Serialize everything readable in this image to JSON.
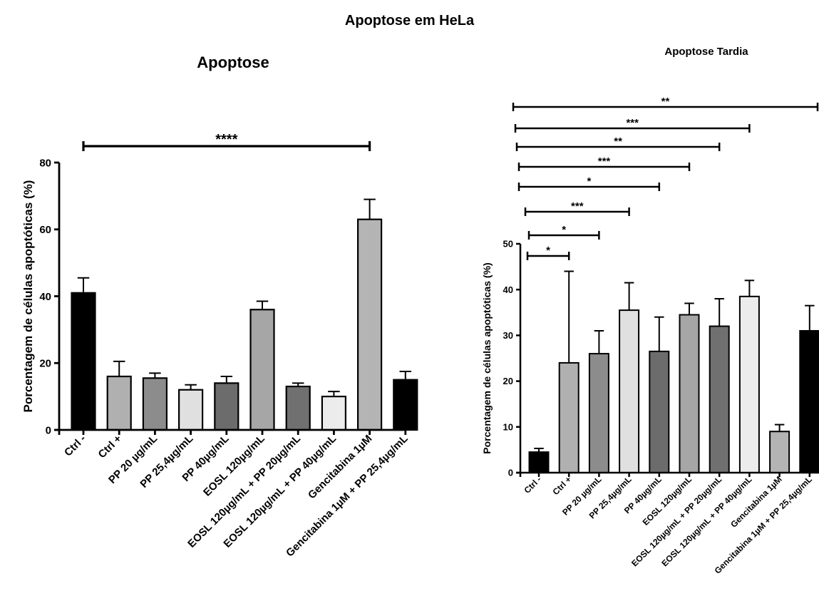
{
  "page": {
    "title": "Apoptose em HeLa"
  },
  "chart_data": [
    {
      "type": "bar",
      "title": "Apoptose",
      "ylabel": "Porcentagem de células apoptóticas (%)",
      "xlabel": "",
      "ylim": [
        0,
        80
      ],
      "yticks": [
        0,
        20,
        40,
        60,
        80
      ],
      "grid": false,
      "categories": [
        "Ctrl -",
        "Ctrl +",
        "PP 20 µg/mL",
        "PP 25,4µg/mL",
        "PP 40µg/mL",
        "EOSL 120µg/mL",
        "EOSL 120µg/mL + PP 20µg/mL",
        "EOSL 120µg/mL + PP 40µg/mL",
        "Gencitabina 1µM",
        "Gencitabina 1µM + PP 25,4µg/mL"
      ],
      "values": [
        41,
        16,
        15.5,
        12,
        14,
        36,
        13,
        10,
        63,
        15
      ],
      "errors": [
        4.5,
        4.5,
        1.5,
        1.5,
        2,
        2.5,
        1,
        1.5,
        6,
        2.5
      ],
      "colors": [
        "#000000",
        "#b0b0b0",
        "#8c8c8c",
        "#e0e0e0",
        "#6c6c6c",
        "#a6a6a6",
        "#707070",
        "#ececec",
        "#b4b4b4",
        "#000000"
      ],
      "significance": [
        {
          "from": 0,
          "to": 8,
          "label": "****"
        }
      ]
    },
    {
      "type": "bar",
      "title": "Apoptose Tardia",
      "ylabel": "Porcentagem de células apoptóticas (%)",
      "xlabel": "",
      "ylim": [
        0,
        50
      ],
      "yticks": [
        0,
        10,
        20,
        30,
        40,
        50
      ],
      "grid": false,
      "categories": [
        "Ctrl -",
        "Ctrl +",
        "PP 20 µg/mL",
        "PP 25,4µg/mL",
        "PP 40µg/mL",
        "EOSL 120µg/mL",
        "EOSL 120µg/mL + PP 20µg/mL",
        "EOSL 120µg/mL + PP 40µg/mL",
        "Gencitabina 1µM",
        "Gencitabina 1µM + PP 25,4µg/mL"
      ],
      "values": [
        4.5,
        24,
        26,
        35.5,
        26.5,
        34.5,
        32,
        38.5,
        9,
        31
      ],
      "errors": [
        0.8,
        20,
        5,
        6,
        7.5,
        2.5,
        6,
        3.5,
        1.5,
        5.5
      ],
      "colors": [
        "#000000",
        "#b0b0b0",
        "#8c8c8c",
        "#e0e0e0",
        "#6c6c6c",
        "#a6a6a6",
        "#707070",
        "#ececec",
        "#b4b4b4",
        "#000000"
      ],
      "significance": [
        {
          "from": 0,
          "to": 1,
          "label": "*"
        },
        {
          "from": 0,
          "to": 2,
          "label": "*"
        },
        {
          "from": 0,
          "to": 3,
          "label": "***"
        },
        {
          "from": 0,
          "to": 4,
          "label": "*"
        },
        {
          "from": 0,
          "to": 5,
          "label": "***"
        },
        {
          "from": 0,
          "to": 6,
          "label": "**"
        },
        {
          "from": 0,
          "to": 7,
          "label": "***"
        },
        {
          "from": 0,
          "to": 9,
          "label": "**"
        }
      ]
    }
  ]
}
